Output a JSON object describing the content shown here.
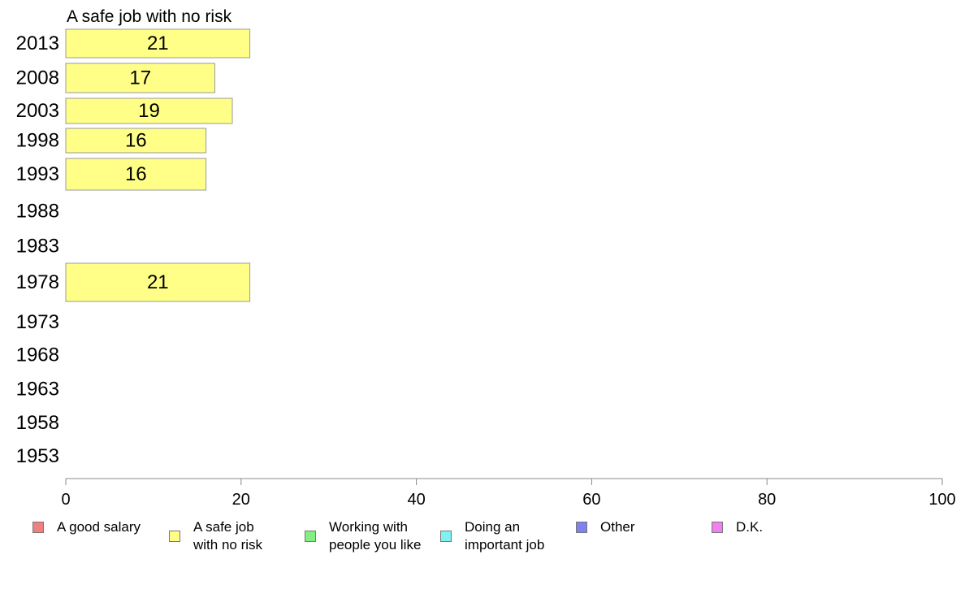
{
  "chart_data": {
    "type": "bar",
    "orientation": "horizontal",
    "title": "A safe job with no risk",
    "categories": [
      "2013",
      "2008",
      "2003",
      "1998",
      "1993",
      "1988",
      "1983",
      "1978",
      "1973",
      "1968",
      "1963",
      "1958",
      "1953"
    ],
    "series": [
      {
        "name": "A safe job with no risk",
        "color": "#ffff88",
        "values": [
          21,
          17,
          19,
          16,
          16,
          null,
          null,
          21,
          null,
          null,
          null,
          null,
          null
        ],
        "labels": [
          "21",
          "17",
          "19",
          "16",
          "16",
          "",
          "",
          "21",
          "",
          "",
          "",
          "",
          ""
        ]
      }
    ],
    "xlim": [
      0,
      100
    ],
    "xticks": [
      "0",
      "20",
      "40",
      "60",
      "80",
      "100"
    ],
    "grid": false,
    "legend_position": "bottom",
    "legend": [
      {
        "label": "A good salary",
        "color": "#f08080"
      },
      {
        "label": "A safe job\nwith no risk",
        "color": "#ffff88"
      },
      {
        "label": "Working with\npeople you like",
        "color": "#80f080"
      },
      {
        "label": "Doing an\nimportant job",
        "color": "#80f0f0"
      },
      {
        "label": "Other",
        "color": "#8080f0"
      },
      {
        "label": "D.K.",
        "color": "#f080f0"
      }
    ]
  }
}
